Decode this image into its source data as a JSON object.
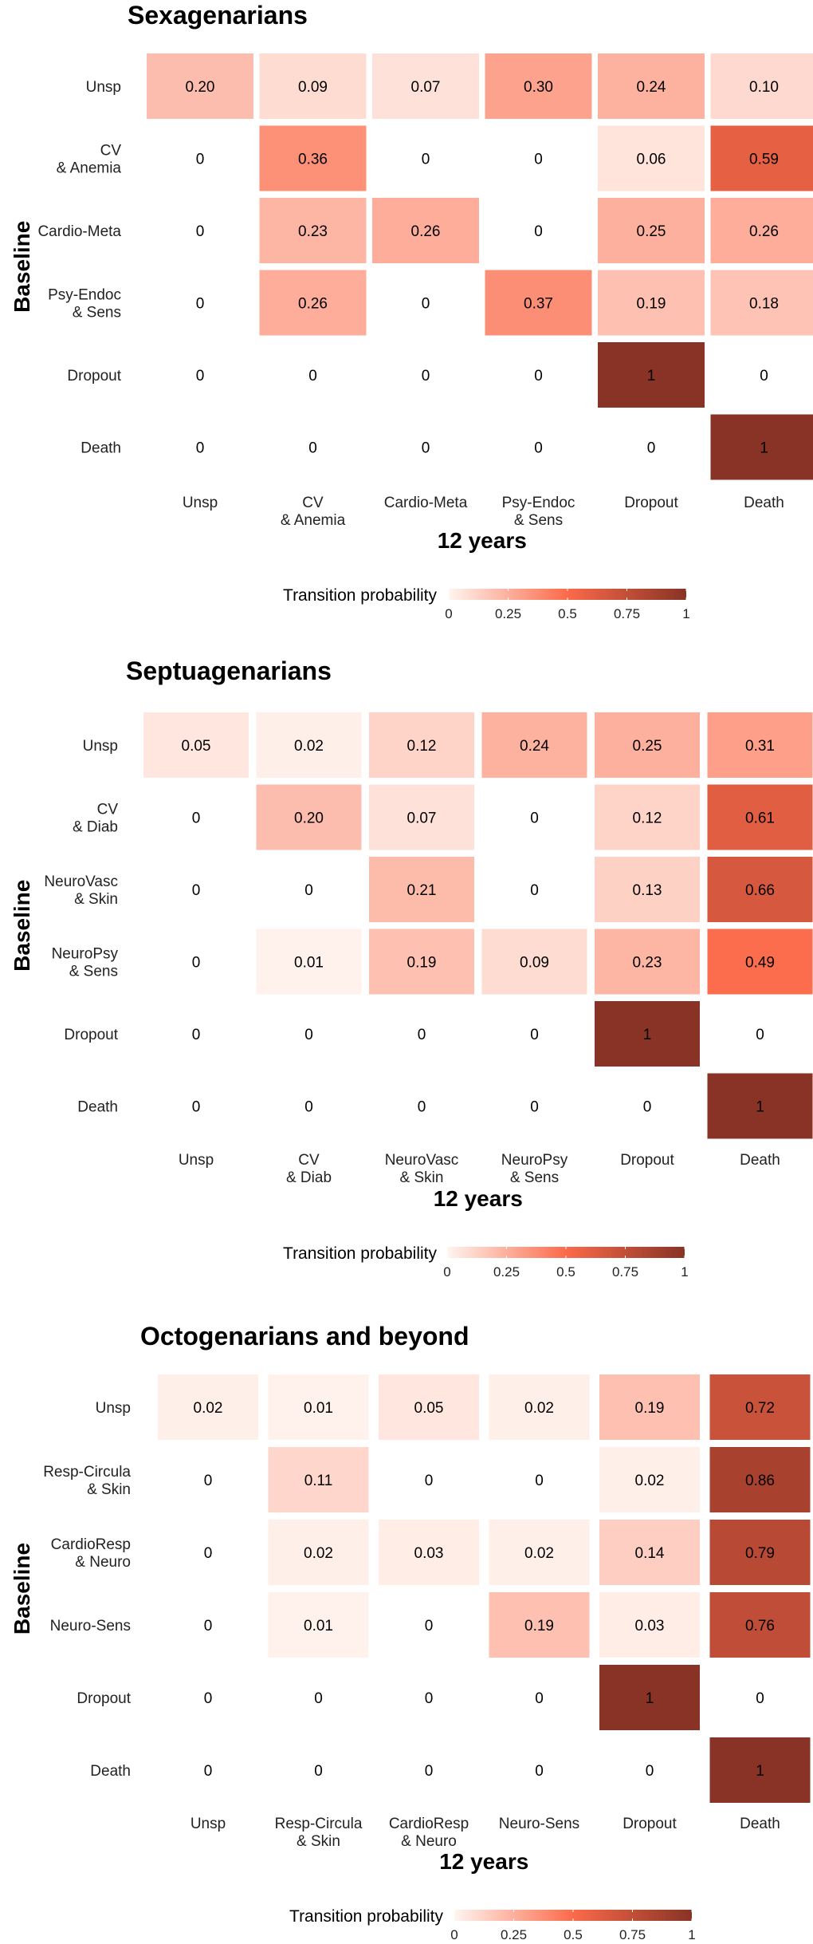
{
  "colors": {
    "low": "#fff5f0",
    "mid": "#fb6a4a",
    "high": "#883325"
  },
  "legend": {
    "title": "Transition probability",
    "ticks": [
      "0",
      "0.25",
      "0.5",
      "0.75",
      "1"
    ]
  },
  "chart_data": [
    {
      "type": "heatmap",
      "title": "Sexagenarians",
      "ylabel": "Baseline",
      "xlabel": "12 years",
      "rows": [
        "Unsp",
        "CV\n& Anemia",
        "Cardio-Meta",
        "Psy-Endoc\n& Sens",
        "Dropout",
        "Death"
      ],
      "cols": [
        "Unsp",
        "CV\n& Anemia",
        "Cardio-Meta",
        "Psy-Endoc\n& Sens",
        "Dropout",
        "Death"
      ],
      "values": [
        [
          0.2,
          0.09,
          0.07,
          0.3,
          0.24,
          0.1
        ],
        [
          0,
          0.36,
          0,
          0,
          0.06,
          0.59
        ],
        [
          0,
          0.23,
          0.26,
          0,
          0.25,
          0.26
        ],
        [
          0,
          0.26,
          0,
          0.37,
          0.19,
          0.18
        ],
        [
          0,
          0,
          0,
          0,
          1,
          0
        ],
        [
          0,
          0,
          0,
          0,
          0,
          1
        ]
      ],
      "labels": [
        [
          "0.20",
          "0.09",
          "0.07",
          "0.30",
          "0.24",
          "0.10"
        ],
        [
          "0",
          "0.36",
          "0",
          "0",
          "0.06",
          "0.59"
        ],
        [
          "0",
          "0.23",
          "0.26",
          "0",
          "0.25",
          "0.26"
        ],
        [
          "0",
          "0.26",
          "0",
          "0.37",
          "0.19",
          "0.18"
        ],
        [
          "0",
          "0",
          "0",
          "0",
          "1",
          "0"
        ],
        [
          "0",
          "0",
          "0",
          "0",
          "0",
          "1"
        ]
      ]
    },
    {
      "type": "heatmap",
      "title": "Septuagenarians",
      "ylabel": "Baseline",
      "xlabel": "12 years",
      "rows": [
        "Unsp",
        "CV\n& Diab",
        "NeuroVasc\n& Skin",
        "NeuroPsy\n& Sens",
        "Dropout",
        "Death"
      ],
      "cols": [
        "Unsp",
        "CV\n& Diab",
        "NeuroVasc\n& Skin",
        "NeuroPsy\n& Sens",
        "Dropout",
        "Death"
      ],
      "values": [
        [
          0.05,
          0.02,
          0.12,
          0.24,
          0.25,
          0.31
        ],
        [
          0,
          0.2,
          0.07,
          0,
          0.12,
          0.61
        ],
        [
          0,
          0,
          0.21,
          0,
          0.13,
          0.66
        ],
        [
          0,
          0.01,
          0.19,
          0.09,
          0.23,
          0.49
        ],
        [
          0,
          0,
          0,
          0,
          1,
          0
        ],
        [
          0,
          0,
          0,
          0,
          0,
          1
        ]
      ],
      "labels": [
        [
          "0.05",
          "0.02",
          "0.12",
          "0.24",
          "0.25",
          "0.31"
        ],
        [
          "0",
          "0.20",
          "0.07",
          "0",
          "0.12",
          "0.61"
        ],
        [
          "0",
          "0",
          "0.21",
          "0",
          "0.13",
          "0.66"
        ],
        [
          "0",
          "0.01",
          "0.19",
          "0.09",
          "0.23",
          "0.49"
        ],
        [
          "0",
          "0",
          "0",
          "0",
          "1",
          "0"
        ],
        [
          "0",
          "0",
          "0",
          "0",
          "0",
          "1"
        ]
      ]
    },
    {
      "type": "heatmap",
      "title": "Octogenarians and beyond",
      "ylabel": "Baseline",
      "xlabel": "12 years",
      "rows": [
        "Unsp",
        "Resp-Circula\n& Skin",
        "CardioResp\n& Neuro",
        "Neuro-Sens",
        "Dropout",
        "Death"
      ],
      "cols": [
        "Unsp",
        "Resp-Circula\n& Skin",
        "CardioResp\n& Neuro",
        "Neuro-Sens",
        "Dropout",
        "Death"
      ],
      "values": [
        [
          0.02,
          0.01,
          0.05,
          0.02,
          0.19,
          0.72
        ],
        [
          0,
          0.11,
          0,
          0,
          0.02,
          0.86
        ],
        [
          0,
          0.02,
          0.03,
          0.02,
          0.14,
          0.79
        ],
        [
          0,
          0.01,
          0,
          0.19,
          0.03,
          0.76
        ],
        [
          0,
          0,
          0,
          0,
          1,
          0
        ],
        [
          0,
          0,
          0,
          0,
          0,
          1
        ]
      ],
      "labels": [
        [
          "0.02",
          "0.01",
          "0.05",
          "0.02",
          "0.19",
          "0.72"
        ],
        [
          "0",
          "0.11",
          "0",
          "0",
          "0.02",
          "0.86"
        ],
        [
          "0",
          "0.02",
          "0.03",
          "0.02",
          "0.14",
          "0.79"
        ],
        [
          "0",
          "0.01",
          "0",
          "0.19",
          "0.03",
          "0.76"
        ],
        [
          "0",
          "0",
          "0",
          "0",
          "1",
          "0"
        ],
        [
          "0",
          "0",
          "0",
          "0",
          "0",
          "1"
        ]
      ]
    }
  ]
}
